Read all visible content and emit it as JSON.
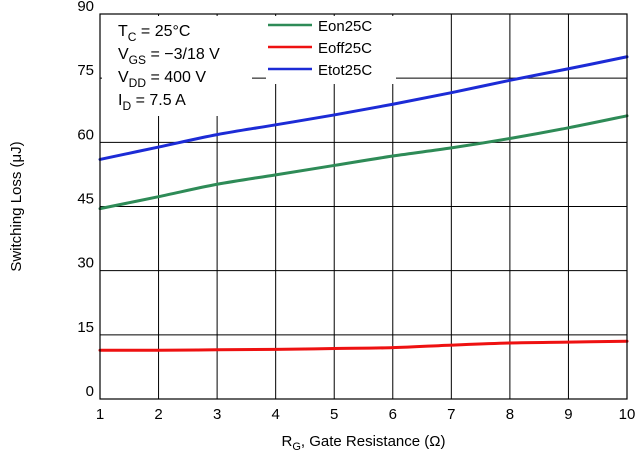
{
  "chart_data": {
    "type": "line",
    "title": "",
    "xlabel": {
      "main": "R",
      "sub": "G",
      "rest": ", Gate Resistance (Ω)"
    },
    "ylabel": "Switching Loss (μJ)",
    "xlim": [
      1,
      10
    ],
    "ylim": [
      0,
      90
    ],
    "xticks": [
      1,
      2,
      3,
      4,
      5,
      6,
      7,
      8,
      9,
      10
    ],
    "yticks": [
      0,
      15,
      30,
      45,
      60,
      75,
      90
    ],
    "grid": true,
    "legend_position": "top-center",
    "conditions": [
      {
        "main": "T",
        "sub": "C",
        "rest": " = 25°C"
      },
      {
        "main": "V",
        "sub": "GS",
        "rest": " = −3/18 V"
      },
      {
        "main": "V",
        "sub": "DD",
        "rest": " = 400 V"
      },
      {
        "main": "I",
        "sub": "D",
        "rest": " = 7.5 A"
      }
    ],
    "x": [
      1,
      2,
      3,
      4,
      5,
      6,
      7,
      8,
      9,
      10
    ],
    "series": [
      {
        "name": "Eon25C",
        "color": "#2e8b57",
        "values": [
          44.5,
          47.3,
          50.2,
          52.4,
          54.6,
          56.8,
          58.7,
          60.9,
          63.4,
          66.2
        ]
      },
      {
        "name": "Eoff25C",
        "color": "#ee1111",
        "values": [
          11.4,
          11.4,
          11.5,
          11.6,
          11.8,
          12.0,
          12.6,
          13.1,
          13.3,
          13.5
        ]
      },
      {
        "name": "Etot25C",
        "color": "#1c2bd6",
        "values": [
          56.0,
          58.9,
          61.8,
          64.1,
          66.4,
          68.9,
          71.6,
          74.5,
          77.2,
          80.0
        ]
      }
    ]
  }
}
